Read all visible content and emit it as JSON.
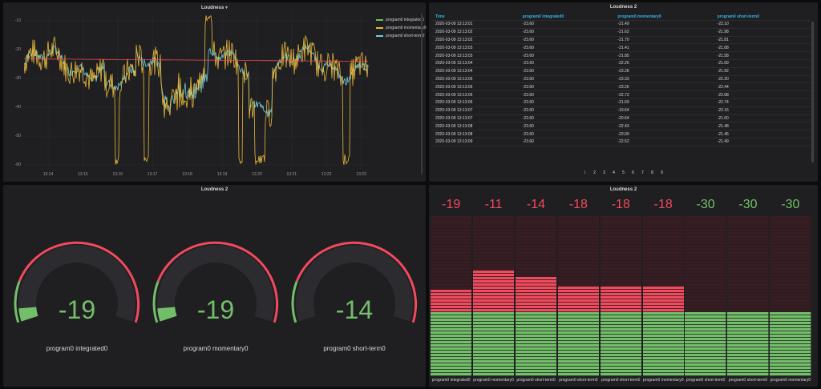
{
  "colors": {
    "green": "#73bf69",
    "red": "#f2495c",
    "yellow": "#eab839",
    "orange": "#e0752d",
    "blue": "#6ed0e0"
  },
  "timeseries": {
    "title": "Loudness",
    "y_ticks": [
      "-10",
      "-20",
      "-30",
      "-40",
      "-50",
      "-60"
    ],
    "x_ticks": [
      "13:14",
      "13:15",
      "13:16",
      "13:17",
      "13:18",
      "13:19",
      "13:20",
      "13:21",
      "13:22",
      "13:23"
    ],
    "legend": [
      {
        "name": "program0 integrated0",
        "color": "#73bf69"
      },
      {
        "name": "program0 momentary0",
        "color": "#eab839"
      },
      {
        "name": "program0 short-term0",
        "color": "#6ed0e0"
      }
    ]
  },
  "chart_data": {
    "type": "line",
    "title": "Loudness",
    "x": [
      "13:14",
      "13:15",
      "13:16",
      "13:17",
      "13:18",
      "13:19",
      "13:20",
      "13:21",
      "13:22",
      "13:23"
    ],
    "ylim": [
      -65,
      -5
    ],
    "series": [
      {
        "name": "program0 integrated0",
        "values": [
          -23.5,
          -23.5,
          -23.5,
          -23.6,
          -23.6,
          -23.6,
          -23.6,
          -23.6,
          -23.6,
          -23.6
        ]
      },
      {
        "name": "program0 momentary0",
        "values": [
          -28,
          -22,
          -60,
          -25,
          -30,
          -20,
          -55,
          -30,
          -58,
          -30
        ]
      },
      {
        "name": "program0 short-term0",
        "values": [
          -27,
          -22,
          -40,
          -24,
          -28,
          -21,
          -45,
          -28,
          -40,
          -29
        ]
      }
    ]
  },
  "table": {
    "title": "Loudness 2",
    "columns": [
      "Time",
      "program0 integrated0",
      "program0 momentary0",
      "program0 short-term0"
    ],
    "rows": [
      [
        "2020-03-09 13:13:01",
        "-23.60",
        "-21.49",
        "-22.10"
      ],
      [
        "2020-03-09 13:13:02",
        "-23.60",
        "-21.62",
        "-21.98"
      ],
      [
        "2020-03-09 13:13:02",
        "-23.60",
        "-21.70",
        "-21.81"
      ],
      [
        "2020-03-09 13:13:03",
        "-23.60",
        "-21.41",
        "-21.68"
      ],
      [
        "2020-03-09 13:13:03",
        "-23.60",
        "-21.85",
        "-21.58"
      ],
      [
        "2020-03-09 13:13:04",
        "-23.60",
        "-22.26",
        "-21.69"
      ],
      [
        "2020-03-09 13:13:04",
        "-23.60",
        "-23.28",
        "-21.92"
      ],
      [
        "2020-03-09 13:13:05",
        "-23.60",
        "-23.33",
        "-22.20"
      ],
      [
        "2020-03-09 13:13:05",
        "-23.60",
        "-23.26",
        "-22.44"
      ],
      [
        "2020-03-09 13:13:06",
        "-23.60",
        "-22.72",
        "-22.68"
      ],
      [
        "2020-03-09 13:13:06",
        "-23.60",
        "-21.69",
        "-22.74"
      ],
      [
        "2020-03-09 13:13:07",
        "-23.60",
        "-19.64",
        "-22.16"
      ],
      [
        "2020-03-09 13:13:07",
        "-23.60",
        "-20.64",
        "-21.60"
      ],
      [
        "2020-03-09 13:13:08",
        "-23.60",
        "-22.43",
        "-21.48"
      ],
      [
        "2020-03-09 13:13:08",
        "-23.60",
        "-23.00",
        "-21.46"
      ],
      [
        "2020-03-09 13:13:09",
        "-23.60",
        "-22.52",
        "-21.49"
      ]
    ],
    "pages": [
      "1",
      "2",
      "3",
      "4",
      "5",
      "6",
      "7",
      "8",
      "9"
    ],
    "active_page": "1"
  },
  "gauges": {
    "title": "Loudness 2",
    "items": [
      {
        "value": "-19",
        "label": "program0 integrated0",
        "fraction": 0.06
      },
      {
        "value": "-19",
        "label": "program0 momentary0",
        "fraction": 0.06
      },
      {
        "value": "-14",
        "label": "program0 short-term0",
        "fraction": 0.0
      }
    ]
  },
  "bargauge": {
    "title": "Loudness 2",
    "items": [
      {
        "value": "-19",
        "label": "program0 integrated0",
        "level": 0.53,
        "color": "red"
      },
      {
        "value": "-11",
        "label": "program0 momentary0",
        "level": 0.66,
        "color": "red"
      },
      {
        "value": "-14",
        "label": "program0 short-term0",
        "level": 0.61,
        "color": "red"
      },
      {
        "value": "-18",
        "label": "program0 short-term0",
        "level": 0.55,
        "color": "red"
      },
      {
        "value": "-18",
        "label": "program0 short-term0",
        "level": 0.55,
        "color": "red"
      },
      {
        "value": "-18",
        "label": "program0 momentary0",
        "level": 0.55,
        "color": "red"
      },
      {
        "value": "-30",
        "label": "program0 short-term0",
        "level": 0.4,
        "color": "green"
      },
      {
        "value": "-30",
        "label": "program0 short-term0",
        "level": 0.4,
        "color": "green"
      },
      {
        "value": "-30",
        "label": "program0 momentary0",
        "level": 0.4,
        "color": "green"
      }
    ]
  }
}
